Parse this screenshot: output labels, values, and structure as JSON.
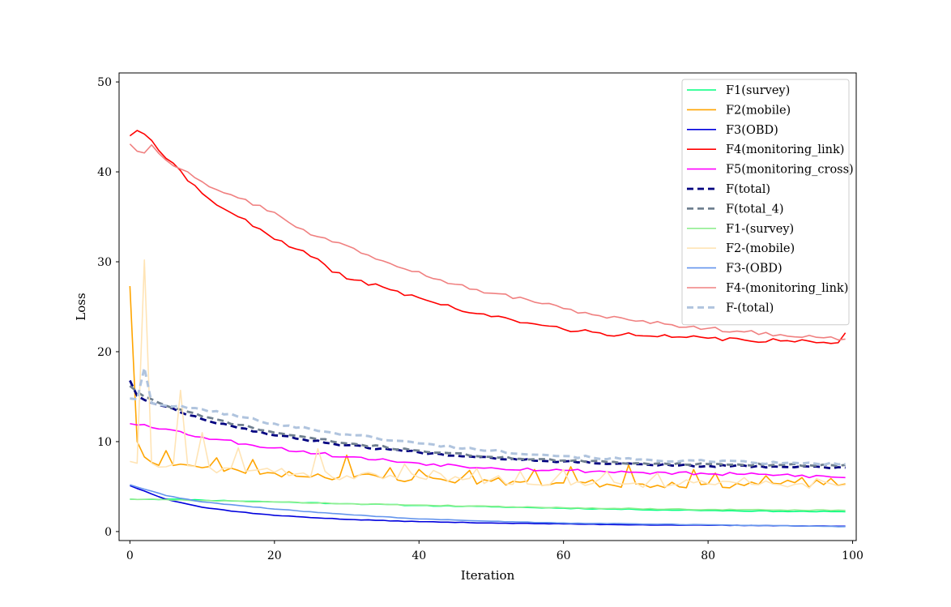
{
  "chart_data": {
    "type": "line",
    "title": "",
    "xlabel": "Iteration",
    "ylabel": "Loss",
    "xlim": [
      -1.5,
      100.5
    ],
    "ylim": [
      -1,
      51
    ],
    "xticks": [
      0,
      20,
      40,
      60,
      80,
      100
    ],
    "yticks": [
      0,
      10,
      20,
      30,
      40,
      50
    ],
    "grid": false,
    "legend_position": "upper-right",
    "series": [
      {
        "name": "F1(survey)",
        "color": "#00ff7f",
        "dash": "solid",
        "width": 1.6,
        "alpha": 1,
        "anchors": [
          [
            0,
            3.6
          ],
          [
            5,
            3.6
          ],
          [
            10,
            3.5
          ],
          [
            20,
            3.3
          ],
          [
            30,
            3.1
          ],
          [
            40,
            2.9
          ],
          [
            50,
            2.75
          ],
          [
            60,
            2.6
          ],
          [
            70,
            2.45
          ],
          [
            80,
            2.35
          ],
          [
            90,
            2.25
          ],
          [
            99,
            2.2
          ]
        ],
        "noise": 0.05,
        "seed": 11
      },
      {
        "name": "F2(mobile)",
        "color": "#ffa500",
        "dash": "solid",
        "width": 1.6,
        "alpha": 1,
        "anchors": [
          [
            0,
            27.3
          ],
          [
            1,
            10
          ],
          [
            2,
            8.3
          ],
          [
            3,
            7.7
          ],
          [
            5,
            7.5
          ],
          [
            8,
            7.4
          ],
          [
            10,
            7.1
          ],
          [
            15,
            6.8
          ],
          [
            20,
            6.5
          ],
          [
            30,
            6.1
          ],
          [
            40,
            5.9
          ],
          [
            50,
            5.6
          ],
          [
            60,
            5.4
          ],
          [
            70,
            5.3
          ],
          [
            80,
            5.3
          ],
          [
            90,
            5.3
          ],
          [
            99,
            5.3
          ]
        ],
        "noise": 0.45,
        "seed": 23,
        "spikes": [
          [
            5,
            9.0
          ],
          [
            12,
            8.2
          ],
          [
            17,
            8.0
          ],
          [
            30,
            8.5
          ],
          [
            36,
            7.1
          ],
          [
            40,
            6.9
          ],
          [
            47,
            6.8
          ],
          [
            56,
            6.9
          ],
          [
            61,
            7.2
          ],
          [
            69,
            7.4
          ],
          [
            78,
            6.9
          ],
          [
            81,
            6.5
          ],
          [
            88,
            6.2
          ],
          [
            93,
            6.0
          ],
          [
            97,
            5.9
          ]
        ]
      },
      {
        "name": "F3(OBD)",
        "color": "#0000dd",
        "dash": "solid",
        "width": 1.6,
        "alpha": 1,
        "anchors": [
          [
            0,
            5.1
          ],
          [
            5,
            3.6
          ],
          [
            10,
            2.7
          ],
          [
            15,
            2.2
          ],
          [
            20,
            1.8
          ],
          [
            30,
            1.35
          ],
          [
            40,
            1.1
          ],
          [
            50,
            0.95
          ],
          [
            60,
            0.85
          ],
          [
            70,
            0.75
          ],
          [
            80,
            0.7
          ],
          [
            90,
            0.65
          ],
          [
            99,
            0.6
          ]
        ],
        "noise": 0.03,
        "seed": 37
      },
      {
        "name": "F4(monitoring_link)",
        "color": "#ff0000",
        "dash": "solid",
        "width": 1.6,
        "alpha": 1,
        "anchors": [
          [
            0,
            44
          ],
          [
            1,
            44.6
          ],
          [
            2,
            44.2
          ],
          [
            3,
            43.5
          ],
          [
            5,
            41.5
          ],
          [
            10,
            37.6
          ],
          [
            15,
            35
          ],
          [
            20,
            32.5
          ],
          [
            25,
            30.6
          ],
          [
            30,
            28.1
          ],
          [
            35,
            27.2
          ],
          [
            40,
            26
          ],
          [
            45,
            24.8
          ],
          [
            50,
            23.9
          ],
          [
            55,
            23.2
          ],
          [
            60,
            22.5
          ],
          [
            65,
            22.1
          ],
          [
            70,
            21.8
          ],
          [
            75,
            21.6
          ],
          [
            80,
            21.5
          ],
          [
            85,
            21.3
          ],
          [
            90,
            21.2
          ],
          [
            95,
            21.0
          ],
          [
            98,
            21.0
          ],
          [
            99,
            22.1
          ]
        ],
        "noise": 0.25,
        "seed": 41
      },
      {
        "name": "F5(monitoring_cross)",
        "color": "#ff00ff",
        "dash": "solid",
        "width": 1.6,
        "alpha": 1,
        "anchors": [
          [
            0,
            12
          ],
          [
            2,
            11.9
          ],
          [
            5,
            11.4
          ],
          [
            10,
            10.5
          ],
          [
            20,
            9.3
          ],
          [
            30,
            8.3
          ],
          [
            40,
            7.6
          ],
          [
            50,
            7.1
          ],
          [
            60,
            6.8
          ],
          [
            70,
            6.6
          ],
          [
            80,
            6.4
          ],
          [
            90,
            6.3
          ],
          [
            99,
            6.0
          ]
        ],
        "noise": 0.2,
        "seed": 53
      },
      {
        "name": "F(total)",
        "color": "#000080",
        "dash": "8,5",
        "width": 2.8,
        "alpha": 1,
        "anchors": [
          [
            0,
            16.8
          ],
          [
            1,
            15.1
          ],
          [
            3,
            14.3
          ],
          [
            5,
            13.9
          ],
          [
            10,
            12.5
          ],
          [
            20,
            10.7
          ],
          [
            30,
            9.6
          ],
          [
            40,
            8.8
          ],
          [
            50,
            8.2
          ],
          [
            60,
            7.8
          ],
          [
            70,
            7.5
          ],
          [
            80,
            7.3
          ],
          [
            90,
            7.2
          ],
          [
            99,
            7.1
          ]
        ],
        "noise": 0.12,
        "seed": 67
      },
      {
        "name": "F(total_4)",
        "color": "#708090",
        "dash": "8,5",
        "width": 2.8,
        "alpha": 1,
        "anchors": [
          [
            0,
            16.2
          ],
          [
            2,
            15.0
          ],
          [
            5,
            14.0
          ],
          [
            10,
            12.8
          ],
          [
            20,
            11.0
          ],
          [
            30,
            9.8
          ],
          [
            40,
            9.0
          ],
          [
            50,
            8.3
          ],
          [
            60,
            7.9
          ],
          [
            70,
            7.6
          ],
          [
            80,
            7.5
          ],
          [
            90,
            7.4
          ],
          [
            99,
            7.4
          ]
        ],
        "noise": 0.12,
        "seed": 71
      },
      {
        "name": "F1-(survey)",
        "color": "#90ee90",
        "dash": "solid",
        "width": 1.6,
        "alpha": 1,
        "anchors": [
          [
            0,
            3.6
          ],
          [
            5,
            3.55
          ],
          [
            10,
            3.45
          ],
          [
            20,
            3.3
          ],
          [
            30,
            3.1
          ],
          [
            40,
            2.95
          ],
          [
            50,
            2.8
          ],
          [
            60,
            2.65
          ],
          [
            70,
            2.55
          ],
          [
            80,
            2.45
          ],
          [
            90,
            2.4
          ],
          [
            99,
            2.35
          ]
        ],
        "noise": 0.05,
        "seed": 79
      },
      {
        "name": "F2-(mobile)",
        "color": "#ffe4b5",
        "dash": "solid",
        "width": 1.6,
        "alpha": 1,
        "anchors": [
          [
            0,
            7.8
          ],
          [
            1,
            7.6
          ],
          [
            2,
            30.2
          ],
          [
            3,
            7.6
          ],
          [
            5,
            7.2
          ],
          [
            10,
            7.0
          ],
          [
            20,
            6.6
          ],
          [
            30,
            6.2
          ],
          [
            40,
            6.0
          ],
          [
            50,
            5.8
          ],
          [
            60,
            5.6
          ],
          [
            70,
            5.4
          ],
          [
            80,
            5.3
          ],
          [
            90,
            5.2
          ],
          [
            99,
            5.2
          ]
        ],
        "noise": 0.5,
        "seed": 83,
        "spikes": [
          [
            7,
            15.7
          ],
          [
            10,
            11.0
          ],
          [
            15,
            9.3
          ],
          [
            26,
            9.2
          ],
          [
            38,
            7.5
          ],
          [
            42,
            6.8
          ],
          [
            48,
            7.0
          ],
          [
            54,
            6.7
          ],
          [
            60,
            6.9
          ],
          [
            66,
            6.7
          ],
          [
            73,
            6.5
          ],
          [
            85,
            6.0
          ],
          [
            95,
            5.9
          ]
        ]
      },
      {
        "name": "F3-(OBD)",
        "color": "#6495ed",
        "dash": "solid",
        "width": 1.6,
        "alpha": 1,
        "anchors": [
          [
            0,
            5.2
          ],
          [
            5,
            4.0
          ],
          [
            10,
            3.3
          ],
          [
            20,
            2.5
          ],
          [
            30,
            1.9
          ],
          [
            40,
            1.4
          ],
          [
            50,
            1.15
          ],
          [
            60,
            0.95
          ],
          [
            70,
            0.85
          ],
          [
            80,
            0.75
          ],
          [
            90,
            0.65
          ],
          [
            99,
            0.55
          ]
        ],
        "noise": 0.03,
        "seed": 89
      },
      {
        "name": "F4-(monitoring_link)",
        "color": "#f08080",
        "dash": "solid",
        "width": 1.6,
        "alpha": 1,
        "anchors": [
          [
            0,
            43.1
          ],
          [
            1,
            42.3
          ],
          [
            2,
            42.1
          ],
          [
            3,
            43.0
          ],
          [
            5,
            41.3
          ],
          [
            8,
            40.0
          ],
          [
            10,
            38.9
          ],
          [
            15,
            37.1
          ],
          [
            20,
            35.5
          ],
          [
            25,
            33.0
          ],
          [
            30,
            31.8
          ],
          [
            35,
            30.1
          ],
          [
            40,
            28.9
          ],
          [
            45,
            27.5
          ],
          [
            50,
            26.5
          ],
          [
            55,
            25.8
          ],
          [
            60,
            24.8
          ],
          [
            65,
            24.0
          ],
          [
            70,
            23.4
          ],
          [
            75,
            23.0
          ],
          [
            80,
            22.6
          ],
          [
            85,
            22.2
          ],
          [
            90,
            21.9
          ],
          [
            95,
            21.6
          ],
          [
            99,
            21.4
          ]
        ],
        "noise": 0.22,
        "seed": 97
      },
      {
        "name": "F-(total)",
        "color": "#b0c4de",
        "dash": "8,5",
        "width": 3.0,
        "alpha": 1,
        "anchors": [
          [
            0,
            14.8
          ],
          [
            1,
            14.7
          ],
          [
            2,
            18.2
          ],
          [
            3,
            14.3
          ],
          [
            5,
            14.0
          ],
          [
            10,
            13.6
          ],
          [
            20,
            12.0
          ],
          [
            30,
            10.8
          ],
          [
            40,
            9.8
          ],
          [
            50,
            9.0
          ],
          [
            60,
            8.4
          ],
          [
            70,
            8.0
          ],
          [
            80,
            7.8
          ],
          [
            90,
            7.6
          ],
          [
            99,
            7.5
          ]
        ],
        "noise": 0.15,
        "seed": 101
      }
    ]
  }
}
